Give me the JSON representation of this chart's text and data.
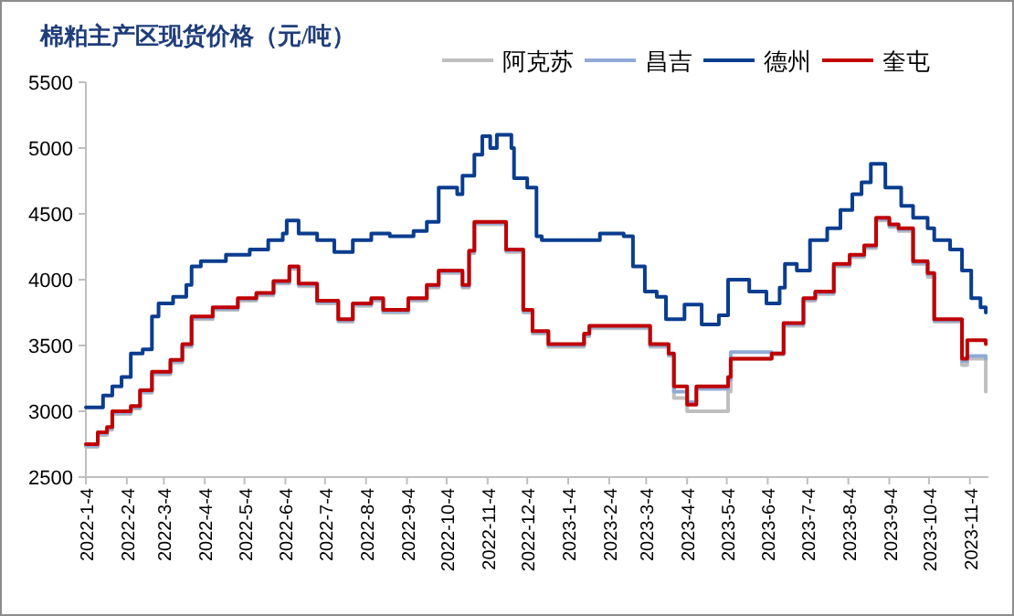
{
  "chart_data": {
    "type": "step",
    "title": "棉粕主产区现货价格（元/吨）",
    "legend": "top right",
    "grid": false,
    "x": [
      "2022-01-04",
      "2022-01-13",
      "2022-01-20",
      "2022-01-24",
      "2022-02-07",
      "2022-02-14",
      "2022-02-23",
      "2022-03-09",
      "2022-03-18",
      "2022-03-25",
      "2022-04-10",
      "2022-04-29",
      "2022-05-13",
      "2022-05-26",
      "2022-06-07",
      "2022-06-14",
      "2022-06-28",
      "2022-07-14",
      "2022-07-25",
      "2022-08-08",
      "2022-08-17",
      "2022-09-05",
      "2022-09-19",
      "2022-09-28",
      "2022-10-16",
      "2022-10-21",
      "2022-10-25",
      "2022-11-18",
      "2022-12-01",
      "2022-12-08",
      "2022-12-20",
      "2023-01-16",
      "2023-01-20",
      "2023-03-07",
      "2023-03-21",
      "2023-03-25",
      "2023-04-04",
      "2023-04-11",
      "2023-05-05",
      "2023-05-07",
      "2023-06-07",
      "2023-06-16",
      "2023-07-01",
      "2023-07-10",
      "2023-07-24",
      "2023-08-05",
      "2023-08-16",
      "2023-08-25",
      "2023-09-04",
      "2023-09-11",
      "2023-09-22",
      "2023-10-03",
      "2023-10-08",
      "2023-10-29",
      "2023-11-02",
      "2023-11-16"
    ],
    "series": [
      {
        "name": "阿克苏",
        "color": "#bfbfbf",
        "values": [
          2730,
          2820,
          2860,
          2980,
          3020,
          3140,
          3280,
          3370,
          3490,
          3700,
          3770,
          3840,
          3880,
          3970,
          4080,
          3950,
          3820,
          3680,
          3800,
          3840,
          3750,
          3840,
          3940,
          4050,
          3940,
          4200,
          4420,
          4210,
          3750,
          3590,
          3490,
          3570,
          3630,
          3490,
          3420,
          3100,
          3000,
          3000,
          3150,
          3400,
          3430,
          3650,
          3840,
          3890,
          4100,
          4170,
          4240,
          4450,
          4400,
          4370,
          4120,
          4020,
          3680,
          3350,
          3400,
          3150
        ]
      },
      {
        "name": "昌吉",
        "color": "#8eaad7",
        "values": [
          2740,
          2830,
          2870,
          2990,
          3030,
          3150,
          3290,
          3380,
          3500,
          3710,
          3780,
          3850,
          3890,
          3980,
          4090,
          3960,
          3830,
          3690,
          3810,
          3850,
          3760,
          3850,
          3950,
          4060,
          3950,
          4210,
          4430,
          4220,
          3760,
          3600,
          3500,
          3580,
          3640,
          3500,
          3430,
          3150,
          3070,
          3170,
          3240,
          3450,
          3440,
          3660,
          3850,
          3900,
          4110,
          4180,
          4250,
          4460,
          4410,
          4380,
          4130,
          4040,
          3690,
          3380,
          3420,
          3400
        ]
      },
      {
        "name": "德州",
        "color": "#0a3d8f",
        "x": [
          "2022-01-04",
          "2022-01-17",
          "2022-01-24",
          "2022-01-31",
          "2022-02-07",
          "2022-02-16",
          "2022-02-23",
          "2022-02-28",
          "2022-03-11",
          "2022-03-21",
          "2022-03-25",
          "2022-04-01",
          "2022-04-20",
          "2022-05-08",
          "2022-05-22",
          "2022-06-02",
          "2022-06-05",
          "2022-06-14",
          "2022-06-28",
          "2022-07-11",
          "2022-07-25",
          "2022-08-08",
          "2022-08-22",
          "2022-09-09",
          "2022-09-19",
          "2022-09-28",
          "2022-10-12",
          "2022-10-16",
          "2022-10-25",
          "2022-10-31",
          "2022-11-06",
          "2022-11-11",
          "2022-11-22",
          "2022-11-24",
          "2022-12-04",
          "2022-12-11",
          "2022-12-15",
          "2023-01-26",
          "2023-01-28",
          "2023-02-15",
          "2023-02-22",
          "2023-03-03",
          "2023-03-12",
          "2023-03-19",
          "2023-04-02",
          "2023-04-15",
          "2023-04-28",
          "2023-05-05",
          "2023-05-21",
          "2023-06-03",
          "2023-06-13",
          "2023-06-17",
          "2023-06-26",
          "2023-07-06",
          "2023-07-19",
          "2023-07-29",
          "2023-08-07",
          "2023-08-14",
          "2023-08-21",
          "2023-09-01",
          "2023-09-13",
          "2023-09-22",
          "2023-10-03",
          "2023-10-08",
          "2023-10-20",
          "2023-10-29",
          "2023-11-05",
          "2023-11-12",
          "2023-11-16"
        ],
        "values": [
          3030,
          3120,
          3190,
          3260,
          3440,
          3470,
          3720,
          3820,
          3870,
          3960,
          4100,
          4140,
          4190,
          4230,
          4300,
          4350,
          4450,
          4350,
          4300,
          4210,
          4300,
          4350,
          4330,
          4370,
          4440,
          4700,
          4650,
          4790,
          4950,
          5090,
          5000,
          5100,
          5000,
          4770,
          4700,
          4330,
          4300,
          4300,
          4350,
          4330,
          4100,
          3910,
          3870,
          3700,
          3810,
          3660,
          3730,
          4000,
          3910,
          3820,
          3940,
          4120,
          4070,
          4300,
          4390,
          4530,
          4650,
          4740,
          4880,
          4700,
          4560,
          4470,
          4390,
          4300,
          4230,
          4070,
          3860,
          3790,
          3750
        ]
      },
      {
        "name": "奎屯",
        "color": "#c00000",
        "values": [
          2750,
          2840,
          2880,
          3000,
          3040,
          3160,
          3300,
          3390,
          3510,
          3720,
          3790,
          3860,
          3900,
          3990,
          4100,
          3970,
          3840,
          3700,
          3820,
          3860,
          3770,
          3860,
          3960,
          4070,
          3960,
          4220,
          4440,
          4230,
          3770,
          3610,
          3510,
          3590,
          3650,
          3510,
          3440,
          3190,
          3050,
          3190,
          3260,
          3400,
          3440,
          3670,
          3860,
          3910,
          4120,
          4190,
          4260,
          4470,
          4420,
          4390,
          4140,
          4050,
          3700,
          3400,
          3540,
          3510
        ]
      }
    ],
    "xlim": [
      "2022-01-04",
      "2023-11-18"
    ],
    "xticks": [
      {
        "value": "2022-01-04",
        "label": "2022-1-4"
      },
      {
        "value": "2022-02-04",
        "label": "2022-2-4"
      },
      {
        "value": "2022-03-04",
        "label": "2022-3-4"
      },
      {
        "value": "2022-04-04",
        "label": "2022-4-4"
      },
      {
        "value": "2022-05-04",
        "label": "2022-5-4"
      },
      {
        "value": "2022-06-04",
        "label": "2022-6-4"
      },
      {
        "value": "2022-07-04",
        "label": "2022-7-4"
      },
      {
        "value": "2022-08-04",
        "label": "2022-8-4"
      },
      {
        "value": "2022-09-04",
        "label": "2022-9-4"
      },
      {
        "value": "2022-10-04",
        "label": "2022-10-4"
      },
      {
        "value": "2022-11-04",
        "label": "2022-11-4"
      },
      {
        "value": "2022-12-04",
        "label": "2022-12-4"
      },
      {
        "value": "2023-01-04",
        "label": "2023-1-4"
      },
      {
        "value": "2023-02-04",
        "label": "2023-2-4"
      },
      {
        "value": "2023-03-04",
        "label": "2023-3-4"
      },
      {
        "value": "2023-04-04",
        "label": "2023-4-4"
      },
      {
        "value": "2023-05-04",
        "label": "2023-5-4"
      },
      {
        "value": "2023-06-04",
        "label": "2023-6-4"
      },
      {
        "value": "2023-07-04",
        "label": "2023-7-4"
      },
      {
        "value": "2023-08-04",
        "label": "2023-8-4"
      },
      {
        "value": "2023-09-04",
        "label": "2023-9-4"
      },
      {
        "value": "2023-10-04",
        "label": "2023-10-4"
      },
      {
        "value": "2023-11-04",
        "label": "2023-11-4"
      }
    ],
    "ylim": [
      2500,
      5500
    ],
    "yticks": [
      2500,
      3000,
      3500,
      4000,
      4500,
      5000,
      5500
    ]
  }
}
